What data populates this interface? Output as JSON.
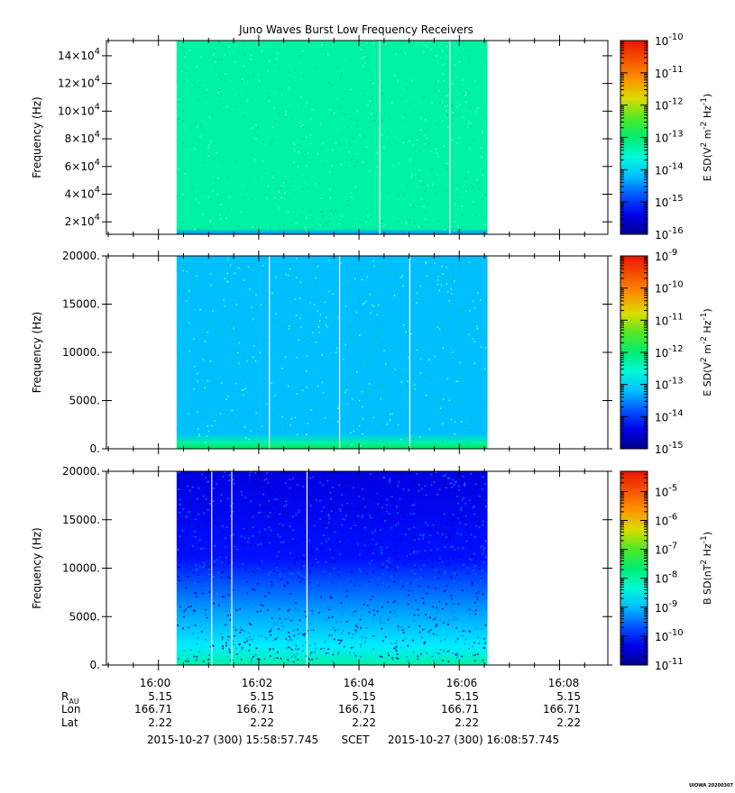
{
  "chart_data": {
    "type": "heatmap",
    "title": "Juno Waves Burst Low Frequency Receivers",
    "x_axis": {
      "range": [
        "15:58:57.745",
        "16:08:57.745"
      ],
      "tick_labels": [
        "16:00",
        "16:02",
        "16:04",
        "16:06",
        "16:08"
      ],
      "tick_minutes": [
        61.0225,
        63.0225,
        65.0225,
        67.0225,
        69.0225
      ],
      "data_span_minutes": [
        1.4,
        7.6
      ]
    },
    "ephemeris": {
      "row_labels": [
        "R",
        "Lon",
        "Lat"
      ],
      "r_subscript": "AU",
      "rows": [
        [
          "5.15",
          "5.15",
          "5.15",
          "5.15",
          "5.15"
        ],
        [
          "166.71",
          "166.71",
          "166.71",
          "166.71",
          "166.71"
        ],
        [
          "2.22",
          "2.22",
          "2.22",
          "2.22",
          "2.22"
        ]
      ]
    },
    "footer": {
      "start": "2015-10-27 (300) 15:58:57.745",
      "scet": "SCET",
      "end": "2015-10-27 (300) 16:08:57.745"
    },
    "stamp": "UIOWA 20200307",
    "panels": [
      {
        "ylabel": "Frequency (Hz)",
        "ylim": [
          11000,
          151000
        ],
        "y_ticks": [
          20000,
          40000,
          60000,
          80000,
          100000,
          120000,
          140000
        ],
        "y_tick_labels": [
          {
            "base": "2×10",
            "exp": "4"
          },
          {
            "base": "4×10",
            "exp": "4"
          },
          {
            "base": "6×10",
            "exp": "4"
          },
          {
            "base": "8×10",
            "exp": "4"
          },
          {
            "base": "10×10",
            "exp": "4"
          },
          {
            "base": "12×10",
            "exp": "4"
          },
          {
            "base": "14×10",
            "exp": "4"
          }
        ],
        "colorbar": {
          "label_prefix": "E SD(V",
          "label_mid": " m",
          "label_mid2": " Hz",
          "label_suffix": ")",
          "sup1": "2",
          "sup2": "-2",
          "sup3": "-1",
          "log_range": [
            -16,
            -10
          ],
          "tick_exponents": [
            "-10",
            "-11",
            "-12",
            "-13",
            "-14",
            "-15",
            "-16"
          ]
        },
        "level": {
          "bulk_log10": -13.3,
          "floor_log10": -14.5
        },
        "gap_lines_minutes": [
          5.45,
          6.85
        ]
      },
      {
        "ylabel": "Frequency (Hz)",
        "ylim": [
          0,
          20000
        ],
        "y_ticks": [
          0,
          5000,
          10000,
          15000,
          20000
        ],
        "y_tick_labels": [
          {
            "base": "0.",
            "exp": ""
          },
          {
            "base": "5000.",
            "exp": ""
          },
          {
            "base": "10000.",
            "exp": ""
          },
          {
            "base": "15000.",
            "exp": ""
          },
          {
            "base": "20000.",
            "exp": ""
          }
        ],
        "colorbar": {
          "label_prefix": "E SD(V",
          "label_mid": " m",
          "label_mid2": " Hz",
          "label_suffix": ")",
          "sup1": "2",
          "sup2": "-2",
          "sup3": "-1",
          "log_range": [
            -15,
            -9
          ],
          "tick_exponents": [
            "-9",
            "-10",
            "-11",
            "-12",
            "-13",
            "-14",
            "-15"
          ]
        },
        "level": {
          "bulk_log10": -13.2,
          "floor_log10": -11.8
        },
        "gap_lines_minutes": [
          3.25,
          4.65,
          6.05
        ]
      },
      {
        "ylabel": "Frequency (Hz)",
        "ylim": [
          0,
          20000
        ],
        "y_ticks": [
          0,
          5000,
          10000,
          15000,
          20000
        ],
        "y_tick_labels": [
          {
            "base": "0.",
            "exp": ""
          },
          {
            "base": "5000.",
            "exp": ""
          },
          {
            "base": "10000.",
            "exp": ""
          },
          {
            "base": "15000.",
            "exp": ""
          },
          {
            "base": "20000.",
            "exp": ""
          }
        ],
        "colorbar": {
          "label_prefix": "B SD(nT",
          "label_mid": " Hz",
          "label_mid2": "",
          "label_suffix": ")",
          "sup1": "2",
          "sup2": "-1",
          "sup3": "",
          "log_range": [
            -11,
            -4.3
          ],
          "tick_exponents": [
            "-5",
            "-6",
            "-7",
            "-8",
            "-9",
            "-10",
            "-11"
          ]
        },
        "level": {
          "bulk_log10": -10.4,
          "floor_log10": -8.0
        },
        "gap_lines_minutes": [
          2.1,
          2.5,
          4.0
        ]
      }
    ]
  }
}
